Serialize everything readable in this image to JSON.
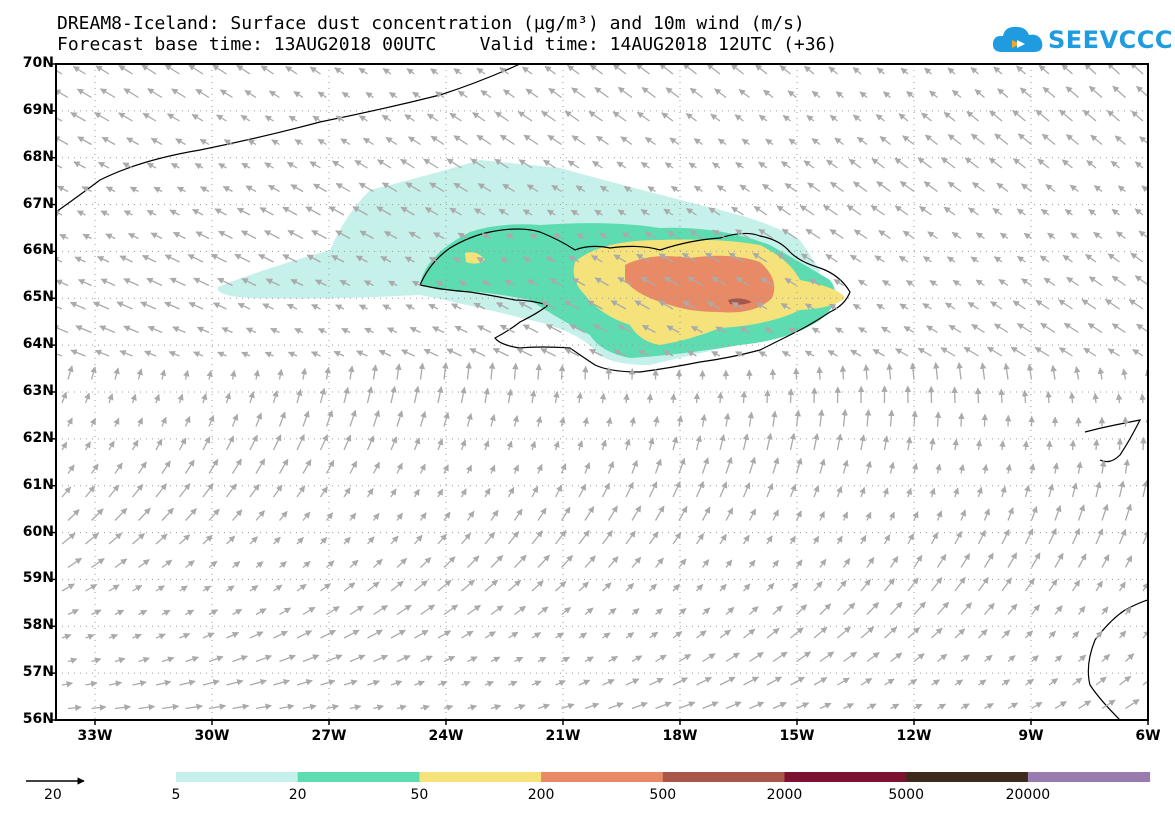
{
  "header": {
    "title_line1": "DREAM8-Iceland: Surface dust concentration (µg/m³) and 10m wind (m/s)",
    "title_line2": "Forecast base time: 13AUG2018 00UTC    Valid time: 14AUG2018 12UTC (+36)"
  },
  "logo": {
    "text": "SEEVCCC",
    "icon": "cloud-icon",
    "color": "#1f9be0"
  },
  "map": {
    "lat_labels": [
      "70N",
      "69N",
      "68N",
      "67N",
      "66N",
      "65N",
      "64N",
      "63N",
      "62N",
      "61N",
      "60N",
      "59N",
      "58N",
      "57N",
      "56N"
    ],
    "lon_labels": [
      "33W",
      "30W",
      "27W",
      "24W",
      "21W",
      "18W",
      "15W",
      "12W",
      "9W",
      "6W"
    ],
    "coastline_color": "#000000",
    "wind_vector_color": "#aaaaaa",
    "grid_style": "dotted"
  },
  "wind_reference": {
    "label": "20"
  },
  "colorbar": {
    "labels": [
      "5",
      "20",
      "50",
      "200",
      "500",
      "2000",
      "5000",
      "20000"
    ],
    "colors": [
      "#c6f0ea",
      "#5cdcb0",
      "#f5e27a",
      "#e88a66",
      "#a8564a",
      "#7c1232",
      "#3d2a1a",
      "#9a7bb0"
    ]
  }
}
